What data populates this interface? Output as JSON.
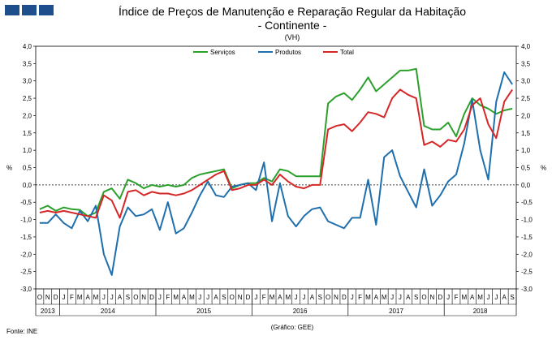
{
  "chart_data": {
    "type": "line",
    "title": "Índice de Preços de Manutenção e Reparação Regular da Habitação",
    "subtitle": "- Continente -",
    "unit_note": "(VH)",
    "ylabel_left": "%",
    "ylabel_right": "%",
    "ylim": [
      -3.0,
      4.0
    ],
    "yticks": [
      "4,0",
      "3,5",
      "3,0",
      "2,5",
      "2,0",
      "1,5",
      "1,0",
      "0,5",
      "0,0",
      "-0,5",
      "-1,0",
      "-1,5",
      "-2,0",
      "-2,5",
      "-3,0"
    ],
    "month_labels": [
      "O",
      "N",
      "D",
      "J",
      "F",
      "M",
      "A",
      "M",
      "J",
      "J",
      "A",
      "S",
      "O",
      "N",
      "D",
      "J",
      "F",
      "M",
      "A",
      "M",
      "J",
      "J",
      "A",
      "S",
      "O",
      "N",
      "D",
      "J",
      "F",
      "M",
      "A",
      "M",
      "J",
      "J",
      "A",
      "S",
      "O",
      "N",
      "D",
      "J",
      "F",
      "M",
      "A",
      "M",
      "J",
      "J",
      "A",
      "S",
      "O",
      "N",
      "D",
      "J",
      "F",
      "M",
      "A",
      "M",
      "J",
      "J",
      "A",
      "S"
    ],
    "year_labels": [
      "2013",
      "2014",
      "2015",
      "2016",
      "2017",
      "2018"
    ],
    "series": [
      {
        "name": "Serviços",
        "color": "#2ca02c",
        "values": [
          -0.7,
          -0.6,
          -0.75,
          -0.65,
          -0.7,
          -0.72,
          -0.9,
          -0.8,
          -0.2,
          -0.1,
          -0.4,
          0.15,
          0.05,
          -0.1,
          0.0,
          -0.05,
          0.0,
          -0.05,
          0.0,
          0.2,
          0.3,
          0.35,
          0.4,
          0.45,
          -0.1,
          0.0,
          0.05,
          0.05,
          0.2,
          0.1,
          0.45,
          0.4,
          0.25,
          0.25,
          0.25,
          0.25,
          2.35,
          2.55,
          2.65,
          2.45,
          2.75,
          3.1,
          2.7,
          2.9,
          3.1,
          3.3,
          3.3,
          3.35,
          1.7,
          1.6,
          1.6,
          1.8,
          1.4,
          2.05,
          2.5,
          2.3,
          2.2,
          2.05,
          2.15,
          2.2
        ]
      },
      {
        "name": "Produtos",
        "color": "#1f6fad",
        "values": [
          -1.1,
          -1.1,
          -0.85,
          -1.1,
          -1.25,
          -0.75,
          -1.05,
          -0.6,
          -2.0,
          -2.6,
          -1.2,
          -0.65,
          -0.9,
          -0.85,
          -0.7,
          -1.3,
          -0.5,
          -1.4,
          -1.25,
          -0.8,
          -0.3,
          0.1,
          -0.3,
          -0.35,
          -0.05,
          0.0,
          0.05,
          -0.15,
          0.65,
          -1.05,
          0.05,
          -0.9,
          -1.2,
          -0.9,
          -0.7,
          -0.65,
          -1.05,
          -1.15,
          -1.25,
          -0.95,
          -0.95,
          0.15,
          -1.15,
          0.8,
          1.0,
          0.25,
          -0.2,
          -0.65,
          0.45,
          -0.6,
          -0.3,
          0.1,
          0.3,
          1.2,
          2.45,
          1.0,
          0.15,
          2.4,
          3.25,
          2.9
        ]
      },
      {
        "name": "Total",
        "color": "#d62728",
        "values": [
          -0.8,
          -0.75,
          -0.8,
          -0.75,
          -0.8,
          -0.85,
          -0.9,
          -0.95,
          -0.3,
          -0.45,
          -0.95,
          -0.2,
          -0.15,
          -0.3,
          -0.2,
          -0.25,
          -0.25,
          -0.3,
          -0.25,
          -0.15,
          0.0,
          0.15,
          0.3,
          0.4,
          -0.15,
          -0.1,
          0.0,
          0.0,
          0.15,
          0.0,
          0.3,
          0.1,
          -0.05,
          -0.1,
          0.0,
          0.0,
          1.6,
          1.7,
          1.75,
          1.55,
          1.8,
          2.1,
          2.05,
          1.95,
          2.5,
          2.75,
          2.6,
          2.5,
          1.15,
          1.25,
          1.1,
          1.3,
          1.25,
          1.6,
          2.3,
          2.5,
          1.75,
          1.35,
          2.4,
          2.75
        ]
      }
    ]
  },
  "footer": {
    "source": "Fonte: INE",
    "credit": "(Gráfico: GEE)"
  }
}
